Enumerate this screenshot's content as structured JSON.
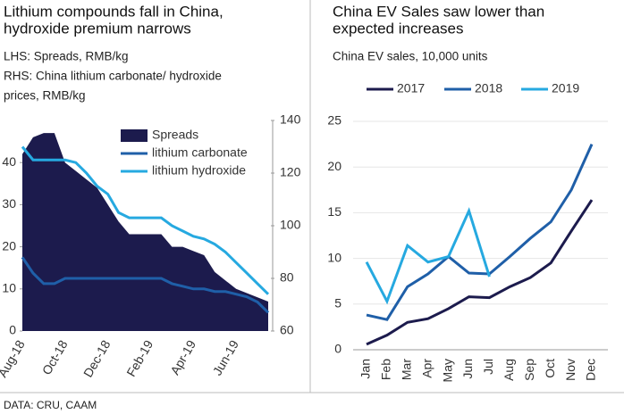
{
  "chart_data": [
    {
      "type": "combo",
      "title": [
        "Lithium compounds fall in China,",
        "hydroxide premium narrows"
      ],
      "subtitle": [
        "LHS: Spreads, RMB/kg",
        "RHS: China lithium carbonate/ hydroxide",
        "prices, RMB/kg"
      ],
      "categories": [
        "Aug-18",
        null,
        null,
        null,
        "Oct-18",
        null,
        null,
        null,
        "Dec-18",
        null,
        null,
        null,
        "Feb-19",
        null,
        null,
        null,
        "Apr-19",
        null,
        null,
        null,
        "Jun-19",
        null,
        null,
        null
      ],
      "ylim": [
        0,
        50
      ],
      "yticks": [
        0,
        10,
        20,
        30,
        40
      ],
      "y2lim": [
        60,
        140
      ],
      "y2ticks": [
        60,
        80,
        100,
        120,
        140
      ],
      "series": [
        {
          "name": "Spreads",
          "type": "area",
          "axis": "y",
          "color": "#1c1b4d",
          "values": [
            42,
            46,
            47,
            47,
            40,
            38,
            36,
            34,
            30,
            26,
            23,
            23,
            23,
            23,
            20,
            20,
            19,
            18,
            14,
            12,
            10,
            9,
            8,
            7
          ]
        },
        {
          "name": "lithium carbonate",
          "type": "line",
          "axis": "y2",
          "color": "#1f5fa8",
          "values": [
            88,
            82,
            78,
            78,
            80,
            80,
            80,
            80,
            80,
            80,
            80,
            80,
            80,
            80,
            78,
            77,
            76,
            76,
            75,
            75,
            74,
            73,
            71,
            67
          ]
        },
        {
          "name": "lithium hydroxide",
          "type": "line",
          "axis": "y2",
          "color": "#26a9e0",
          "values": [
            130,
            125,
            125,
            125,
            125,
            124,
            120,
            115,
            112,
            105,
            103,
            103,
            103,
            103,
            100,
            98,
            96,
            95,
            93,
            90,
            86,
            82,
            78,
            74
          ]
        }
      ]
    },
    {
      "type": "line",
      "title": [
        "China EV Sales saw lower than",
        "expected increases"
      ],
      "subtitle": [
        "China EV sales, 10,000 units"
      ],
      "categories": [
        "Jan",
        "Feb",
        "Mar",
        "Apr",
        "May",
        "Jun",
        "Jul",
        "Aug",
        "Sep",
        "Oct",
        "Nov",
        "Dec"
      ],
      "ylim": [
        0,
        25
      ],
      "yticks": [
        0,
        5,
        10,
        15,
        20,
        25
      ],
      "series": [
        {
          "name": "2017",
          "color": "#1c1b4d",
          "values": [
            0.6,
            1.6,
            3.0,
            3.4,
            4.5,
            5.8,
            5.7,
            6.9,
            7.9,
            9.5,
            13,
            16.4
          ]
        },
        {
          "name": "2018",
          "color": "#1f5fa8",
          "values": [
            3.8,
            3.3,
            6.9,
            8.3,
            10.2,
            8.4,
            8.3,
            10.2,
            12.2,
            14,
            17.5,
            22.5
          ]
        },
        {
          "name": "2019",
          "color": "#26a9e0",
          "values": [
            9.6,
            5.3,
            11.4,
            9.6,
            10.2,
            15.2,
            8.0,
            null,
            null,
            null,
            null,
            null
          ]
        }
      ]
    }
  ],
  "source": "DATA: CRU, CAAM"
}
